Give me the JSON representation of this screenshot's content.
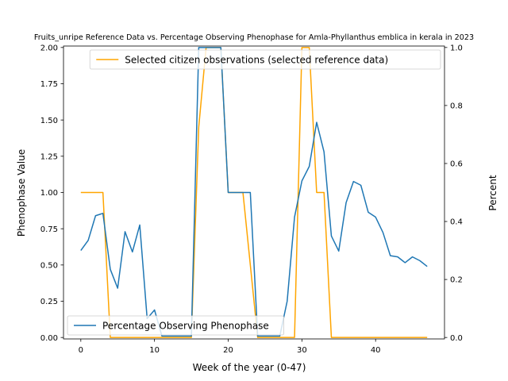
{
  "chart_data": {
    "type": "line",
    "title": "Fruits_unripe Reference Data vs. Percentage Observing Phenophase for Amla-Phyllanthus emblica in kerala in 2023",
    "xlabel": "Week of the year (0-47)",
    "ylabel_left": "Phenophase Value",
    "ylabel_right": "Percent",
    "xlim": [
      -2.35,
      49.35
    ],
    "ylim_left": [
      -0.01,
      2.01
    ],
    "ylim_right": [
      -0.005,
      1.005
    ],
    "x_ticks": [
      0,
      10,
      20,
      30,
      40
    ],
    "y_ticks_left": [
      0.0,
      0.25,
      0.5,
      0.75,
      1.0,
      1.25,
      1.5,
      1.75,
      2.0
    ],
    "y_ticks_right": [
      0.0,
      0.2,
      0.4,
      0.6,
      0.8,
      1.0
    ],
    "y_ticklabels_left": [
      "0.00",
      "0.25",
      "0.50",
      "0.75",
      "1.00",
      "1.25",
      "1.50",
      "1.75",
      "2.00"
    ],
    "y_ticklabels_right": [
      "0.0",
      "0.2",
      "0.4",
      "0.6",
      "0.8",
      "1.0"
    ],
    "series": [
      {
        "name": "Selected citizen observations (selected reference data)",
        "axis": "left",
        "color": "#ffa500",
        "legend": "top-right",
        "x": [
          0,
          1,
          2,
          3,
          4,
          5,
          6,
          7,
          8,
          9,
          10,
          11,
          12,
          13,
          14,
          15,
          16,
          17,
          18,
          19,
          20,
          21,
          22,
          23,
          24,
          25,
          26,
          27,
          28,
          29,
          30,
          31,
          32,
          33,
          34,
          35,
          36,
          37,
          38,
          39,
          40,
          41,
          42,
          43,
          44,
          45,
          46,
          47
        ],
        "y": [
          1,
          1,
          1,
          1,
          0,
          0,
          0,
          0,
          0,
          0,
          0,
          0,
          0,
          0,
          0,
          0,
          1.45,
          2,
          2,
          2,
          1,
          1,
          1,
          0.5,
          0,
          0,
          0,
          0,
          0,
          0,
          2,
          2,
          1,
          1,
          0,
          0,
          0,
          0,
          0,
          0,
          0,
          0,
          0,
          0,
          0,
          0,
          0,
          0
        ]
      },
      {
        "name": "Percentage Observing Phenophase",
        "axis": "right",
        "color": "#1f77b4",
        "legend": "bottom-left",
        "x": [
          0,
          1,
          2,
          3,
          4,
          5,
          6,
          7,
          8,
          9,
          10,
          11,
          12,
          13,
          14,
          15,
          16,
          17,
          18,
          19,
          20,
          21,
          22,
          23,
          24,
          25,
          26,
          27,
          28,
          29,
          30,
          31,
          32,
          33,
          34,
          35,
          36,
          37,
          38,
          39,
          40,
          41,
          42,
          43,
          44,
          45,
          46,
          47
        ],
        "y": [
          0.3,
          0.335,
          0.42,
          0.428,
          0.235,
          0.17,
          0.365,
          0.295,
          0.388,
          0.065,
          0.095,
          0.005,
          0.005,
          0.005,
          0.005,
          0.005,
          1.0,
          1.0,
          1.0,
          1.0,
          0.5,
          0.5,
          0.5,
          0.5,
          0.005,
          0.005,
          0.005,
          0.005,
          0.125,
          0.415,
          0.54,
          0.59,
          0.742,
          0.64,
          0.35,
          0.298,
          0.465,
          0.538,
          0.525,
          0.432,
          0.415,
          0.362,
          0.282,
          0.278,
          0.258,
          0.278,
          0.265,
          0.245
        ]
      }
    ]
  }
}
